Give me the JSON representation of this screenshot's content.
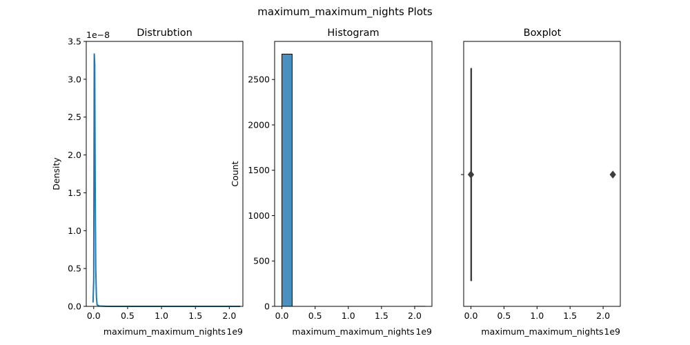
{
  "suptitle": "maximum_maximum_nights Plots",
  "chart_data": [
    {
      "type": "line",
      "title": "Distrubtion",
      "xlabel": "maximum_maximum_nights",
      "ylabel": "Density",
      "x_offset_label": "1e9",
      "y_offset_label": "1e−8",
      "xlim": [
        -0.11,
        2.2
      ],
      "ylim": [
        0,
        3.5
      ],
      "x_ticks": [
        0.0,
        0.5,
        1.0,
        1.5,
        2.0
      ],
      "x_tick_labels": [
        "0.0",
        "0.5",
        "1.0",
        "1.5",
        "2.0"
      ],
      "y_ticks": [
        0.0,
        0.5,
        1.0,
        1.5,
        2.0,
        2.5,
        3.0,
        3.5
      ],
      "y_tick_labels": [
        "0.0",
        "0.5",
        "1.0",
        "1.5",
        "2.0",
        "2.5",
        "3.0",
        "3.5"
      ],
      "color": "#1f77b4",
      "series": [
        {
          "x": [
            -0.01,
            0.0,
            0.008,
            0.015,
            0.022,
            0.03,
            0.04,
            0.05,
            0.08,
            0.2,
            0.5,
            1.0,
            1.5,
            2.0,
            2.16
          ],
          "y": [
            0.05,
            0.35,
            3.34,
            3.2,
            1.6,
            0.5,
            0.12,
            0.02,
            0.005,
            0.0,
            0.0,
            0.0,
            0.0,
            0.0,
            0.0
          ]
        }
      ],
      "grid": false
    },
    {
      "type": "bar",
      "title": "Histogram",
      "xlabel": "maximum_maximum_nights",
      "ylabel": "Count",
      "x_offset_label": "1e9",
      "xlim": [
        -0.11,
        2.26
      ],
      "ylim": [
        0,
        2920
      ],
      "x_ticks": [
        0.0,
        0.5,
        1.0,
        1.5,
        2.0
      ],
      "x_tick_labels": [
        "0.0",
        "0.5",
        "1.0",
        "1.5",
        "2.0"
      ],
      "y_ticks": [
        0,
        500,
        1000,
        1500,
        2000,
        2500
      ],
      "y_tick_labels": [
        "0",
        "500",
        "1000",
        "1500",
        "2000",
        "2500"
      ],
      "bin_width": 0.154,
      "bins": [
        {
          "x0": 0.0,
          "count": 2780
        },
        {
          "x0": 0.154,
          "count": 0
        },
        {
          "x0": 0.308,
          "count": 0
        },
        {
          "x0": 0.462,
          "count": 0
        },
        {
          "x0": 0.616,
          "count": 0
        },
        {
          "x0": 0.77,
          "count": 0
        },
        {
          "x0": 0.924,
          "count": 0
        },
        {
          "x0": 1.078,
          "count": 0
        },
        {
          "x0": 1.232,
          "count": 0
        },
        {
          "x0": 1.386,
          "count": 0
        },
        {
          "x0": 1.54,
          "count": 0
        },
        {
          "x0": 1.694,
          "count": 0
        },
        {
          "x0": 1.848,
          "count": 0
        },
        {
          "x0": 2.002,
          "count": 1
        }
      ],
      "bar_color": "#4a90c0",
      "edge_color": "#000000",
      "grid": false
    },
    {
      "type": "box",
      "title": "Boxplot",
      "xlabel": "maximum_maximum_nights",
      "x_offset_label": "1e9",
      "xlim": [
        -0.11,
        2.26
      ],
      "x_ticks": [
        0.0,
        0.5,
        1.0,
        1.5,
        2.0
      ],
      "x_tick_labels": [
        "0.0",
        "0.5",
        "1.0",
        "1.5",
        "2.0"
      ],
      "y_tick_labels": [
        ""
      ],
      "box": {
        "min": 0.0,
        "q1": 0.0,
        "median": 0.0,
        "q3": 0.0,
        "max": 0.0
      },
      "outliers": [
        0.0,
        2.147
      ],
      "color": "#3d3d3d",
      "grid": false
    }
  ]
}
